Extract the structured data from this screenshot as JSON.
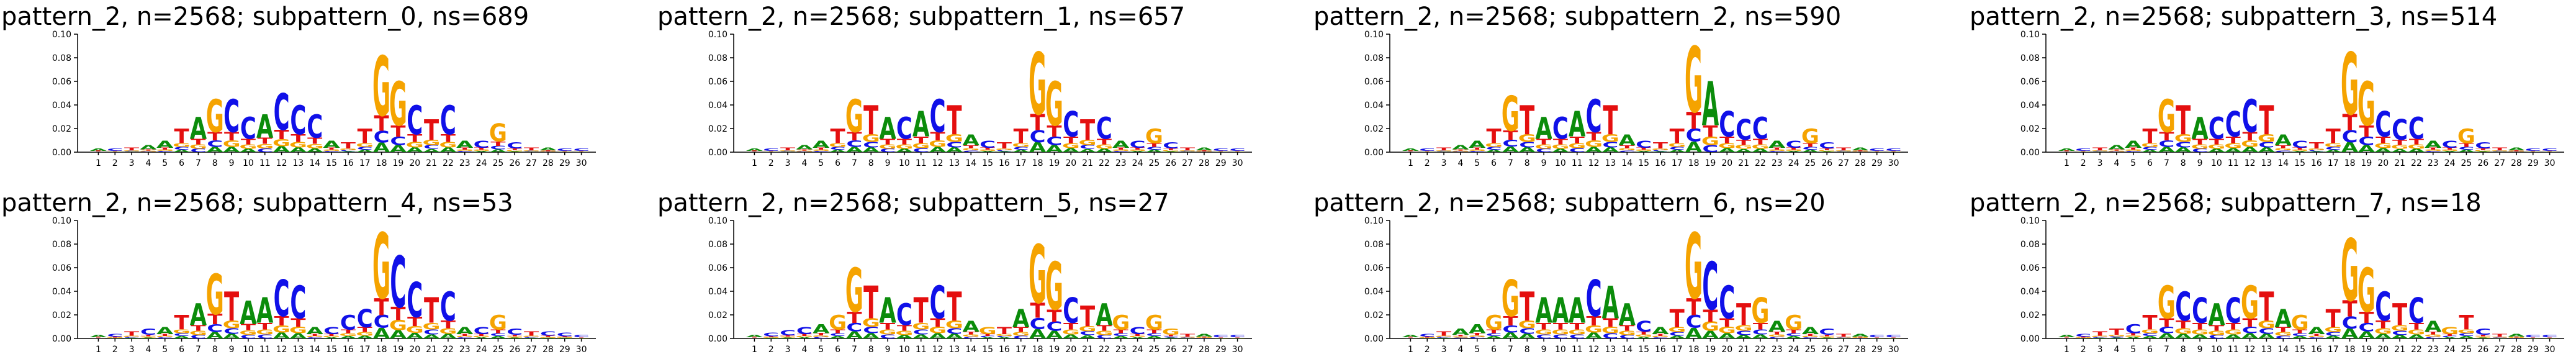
{
  "figure": {
    "chart_data": [
      {
        "type": "sequence-logo",
        "title": "pattern_2, n=2568; subpattern_0, ns=689",
        "ylim": [
          0,
          0.1
        ],
        "yticks": [
          "0.00",
          "0.02",
          "0.04",
          "0.06",
          "0.08",
          "0.10"
        ],
        "positions": [
          "1",
          "2",
          "3",
          "4",
          "5",
          "6",
          "7",
          "8",
          "9",
          "10",
          "11",
          "12",
          "13",
          "14",
          "15",
          "16",
          "17",
          "18",
          "19",
          "20",
          "21",
          "22",
          "23",
          "24",
          "25",
          "26",
          "27",
          "28",
          "29",
          "30"
        ],
        "heights": [
          0.003,
          0.003,
          0.004,
          0.006,
          0.01,
          0.02,
          0.03,
          0.045,
          0.045,
          0.03,
          0.032,
          0.05,
          0.04,
          0.032,
          0.01,
          0.008,
          0.02,
          0.082,
          0.06,
          0.04,
          0.028,
          0.04,
          0.01,
          0.01,
          0.024,
          0.008,
          0.004,
          0.004,
          0.003,
          0.003
        ],
        "top_letters": [
          "A",
          "C",
          "T",
          "A",
          "A",
          "T",
          "A",
          "G",
          "C",
          "C",
          "A",
          "C",
          "C",
          "C",
          "A",
          "T",
          "T",
          "G",
          "G",
          "C",
          "T",
          "C",
          "A",
          "C",
          "G",
          "C",
          "T",
          "A",
          "C",
          "C"
        ]
      },
      {
        "type": "sequence-logo",
        "title": "pattern_2, n=2568; subpattern_1, ns=657",
        "ylim": [
          0,
          0.1
        ],
        "yticks": [
          "0.00",
          "0.02",
          "0.04",
          "0.06",
          "0.08",
          "0.10"
        ],
        "positions": [
          "1",
          "2",
          "3",
          "4",
          "5",
          "6",
          "7",
          "8",
          "9",
          "10",
          "11",
          "12",
          "13",
          "14",
          "15",
          "16",
          "17",
          "18",
          "19",
          "20",
          "21",
          "22",
          "23",
          "24",
          "25",
          "26",
          "27",
          "28",
          "29",
          "30"
        ],
        "heights": [
          0.003,
          0.003,
          0.004,
          0.006,
          0.01,
          0.02,
          0.045,
          0.04,
          0.03,
          0.03,
          0.035,
          0.045,
          0.04,
          0.015,
          0.01,
          0.008,
          0.02,
          0.085,
          0.06,
          0.035,
          0.028,
          0.03,
          0.01,
          0.01,
          0.02,
          0.008,
          0.004,
          0.004,
          0.003,
          0.003
        ],
        "top_letters": [
          "A",
          "C",
          "T",
          "A",
          "A",
          "T",
          "G",
          "T",
          "A",
          "C",
          "A",
          "C",
          "T",
          "A",
          "C",
          "T",
          "T",
          "G",
          "G",
          "C",
          "T",
          "C",
          "A",
          "C",
          "G",
          "C",
          "T",
          "A",
          "C",
          "C"
        ]
      },
      {
        "type": "sequence-logo",
        "title": "pattern_2, n=2568; subpattern_2, ns=590",
        "ylim": [
          0,
          0.1
        ],
        "yticks": [
          "0.00",
          "0.02",
          "0.04",
          "0.06",
          "0.08",
          "0.10"
        ],
        "positions": [
          "1",
          "2",
          "3",
          "4",
          "5",
          "6",
          "7",
          "8",
          "9",
          "10",
          "11",
          "12",
          "13",
          "14",
          "15",
          "16",
          "17",
          "18",
          "19",
          "20",
          "21",
          "22",
          "23",
          "24",
          "25",
          "26",
          "27",
          "28",
          "29",
          "30"
        ],
        "heights": [
          0.003,
          0.003,
          0.004,
          0.006,
          0.01,
          0.02,
          0.048,
          0.04,
          0.03,
          0.03,
          0.035,
          0.045,
          0.04,
          0.015,
          0.01,
          0.008,
          0.02,
          0.09,
          0.06,
          0.035,
          0.028,
          0.03,
          0.01,
          0.01,
          0.02,
          0.008,
          0.004,
          0.004,
          0.003,
          0.003
        ],
        "top_letters": [
          "A",
          "C",
          "T",
          "A",
          "A",
          "T",
          "G",
          "T",
          "A",
          "C",
          "A",
          "C",
          "T",
          "A",
          "C",
          "T",
          "T",
          "G",
          "A",
          "C",
          "C",
          "C",
          "A",
          "C",
          "G",
          "C",
          "T",
          "A",
          "C",
          "C"
        ]
      },
      {
        "type": "sequence-logo",
        "title": "pattern_2, n=2568; subpattern_3, ns=514",
        "ylim": [
          0,
          0.1
        ],
        "yticks": [
          "0.00",
          "0.02",
          "0.04",
          "0.06",
          "0.08",
          "0.10"
        ],
        "positions": [
          "1",
          "2",
          "3",
          "4",
          "5",
          "6",
          "7",
          "8",
          "9",
          "10",
          "11",
          "12",
          "13",
          "14",
          "15",
          "16",
          "17",
          "18",
          "19",
          "20",
          "21",
          "22",
          "23",
          "24",
          "25",
          "26",
          "27",
          "28",
          "29",
          "30"
        ],
        "heights": [
          0.003,
          0.003,
          0.004,
          0.006,
          0.01,
          0.02,
          0.045,
          0.04,
          0.03,
          0.03,
          0.035,
          0.045,
          0.04,
          0.015,
          0.01,
          0.008,
          0.02,
          0.085,
          0.06,
          0.035,
          0.028,
          0.03,
          0.01,
          0.01,
          0.02,
          0.008,
          0.004,
          0.004,
          0.003,
          0.003
        ],
        "top_letters": [
          "A",
          "C",
          "T",
          "A",
          "A",
          "T",
          "G",
          "T",
          "A",
          "C",
          "C",
          "C",
          "T",
          "A",
          "C",
          "T",
          "T",
          "G",
          "G",
          "C",
          "C",
          "C",
          "A",
          "C",
          "G",
          "C",
          "T",
          "A",
          "C",
          "C"
        ]
      },
      {
        "type": "sequence-logo",
        "title": "pattern_2, n=2568; subpattern_4, ns=53",
        "ylim": [
          0,
          0.1
        ],
        "yticks": [
          "0.00",
          "0.02",
          "0.04",
          "0.06",
          "0.08",
          "0.10"
        ],
        "positions": [
          "1",
          "2",
          "3",
          "4",
          "5",
          "6",
          "7",
          "8",
          "9",
          "10",
          "11",
          "12",
          "13",
          "14",
          "15",
          "16",
          "17",
          "18",
          "19",
          "20",
          "21",
          "22",
          "23",
          "24",
          "25",
          "26",
          "27",
          "28",
          "29",
          "30"
        ],
        "heights": [
          0.003,
          0.004,
          0.006,
          0.008,
          0.01,
          0.02,
          0.03,
          0.055,
          0.04,
          0.032,
          0.035,
          0.05,
          0.045,
          0.01,
          0.01,
          0.02,
          0.025,
          0.09,
          0.07,
          0.048,
          0.035,
          0.04,
          0.01,
          0.01,
          0.02,
          0.008,
          0.006,
          0.006,
          0.005,
          0.003
        ],
        "top_letters": [
          "A",
          "C",
          "T",
          "C",
          "A",
          "T",
          "A",
          "G",
          "T",
          "A",
          "A",
          "C",
          "C",
          "A",
          "C",
          "C",
          "C",
          "G",
          "C",
          "C",
          "T",
          "C",
          "A",
          "C",
          "G",
          "C",
          "T",
          "C",
          "C",
          "C"
        ]
      },
      {
        "type": "sequence-logo",
        "title": "pattern_2, n=2568; subpattern_5, ns=27",
        "ylim": [
          0,
          0.1
        ],
        "yticks": [
          "0.00",
          "0.02",
          "0.04",
          "0.06",
          "0.08",
          "0.10"
        ],
        "positions": [
          "1",
          "2",
          "3",
          "4",
          "5",
          "6",
          "7",
          "8",
          "9",
          "10",
          "11",
          "12",
          "13",
          "14",
          "15",
          "16",
          "17",
          "18",
          "19",
          "20",
          "21",
          "22",
          "23",
          "24",
          "25",
          "26",
          "27",
          "28",
          "29",
          "30"
        ],
        "heights": [
          0.003,
          0.005,
          0.007,
          0.01,
          0.012,
          0.02,
          0.06,
          0.045,
          0.035,
          0.03,
          0.035,
          0.045,
          0.04,
          0.015,
          0.01,
          0.01,
          0.025,
          0.08,
          0.065,
          0.035,
          0.028,
          0.03,
          0.02,
          0.01,
          0.02,
          0.008,
          0.004,
          0.004,
          0.003,
          0.003
        ],
        "top_letters": [
          "A",
          "C",
          "C",
          "C",
          "A",
          "G",
          "G",
          "T",
          "A",
          "C",
          "T",
          "C",
          "T",
          "A",
          "G",
          "T",
          "A",
          "G",
          "G",
          "C",
          "T",
          "A",
          "G",
          "C",
          "G",
          "G",
          "T",
          "A",
          "C",
          "C"
        ]
      },
      {
        "type": "sequence-logo",
        "title": "pattern_2, n=2568; subpattern_6, ns=20",
        "ylim": [
          0,
          0.1
        ],
        "yticks": [
          "0.00",
          "0.02",
          "0.04",
          "0.06",
          "0.08",
          "0.10"
        ],
        "positions": [
          "1",
          "2",
          "3",
          "4",
          "5",
          "6",
          "7",
          "8",
          "9",
          "10",
          "11",
          "12",
          "13",
          "14",
          "15",
          "16",
          "17",
          "18",
          "19",
          "20",
          "21",
          "22",
          "23",
          "24",
          "25",
          "26",
          "27",
          "28",
          "29",
          "30"
        ],
        "heights": [
          0.003,
          0.004,
          0.006,
          0.008,
          0.012,
          0.02,
          0.05,
          0.04,
          0.035,
          0.035,
          0.035,
          0.05,
          0.045,
          0.03,
          0.015,
          0.01,
          0.025,
          0.09,
          0.065,
          0.045,
          0.03,
          0.035,
          0.015,
          0.02,
          0.01,
          0.008,
          0.004,
          0.004,
          0.003,
          0.003
        ],
        "top_letters": [
          "A",
          "C",
          "T",
          "A",
          "A",
          "G",
          "G",
          "T",
          "A",
          "A",
          "A",
          "C",
          "A",
          "A",
          "C",
          "A",
          "T",
          "G",
          "C",
          "C",
          "T",
          "G",
          "A",
          "G",
          "A",
          "C",
          "T",
          "A",
          "C",
          "C"
        ]
      },
      {
        "type": "sequence-logo",
        "title": "pattern_2, n=2568; subpattern_7, ns=18",
        "ylim": [
          0,
          0.1
        ],
        "yticks": [
          "0.00",
          "0.02",
          "0.04",
          "0.06",
          "0.08",
          "0.10"
        ],
        "positions": [
          "1",
          "2",
          "3",
          "4",
          "5",
          "6",
          "7",
          "8",
          "9",
          "10",
          "11",
          "12",
          "13",
          "14",
          "15",
          "16",
          "17",
          "18",
          "19",
          "20",
          "21",
          "22",
          "23",
          "24",
          "25",
          "26",
          "27",
          "28",
          "29",
          "30"
        ],
        "heights": [
          0.003,
          0.004,
          0.006,
          0.008,
          0.012,
          0.02,
          0.045,
          0.04,
          0.035,
          0.03,
          0.035,
          0.045,
          0.04,
          0.025,
          0.02,
          0.01,
          0.025,
          0.085,
          0.06,
          0.04,
          0.03,
          0.035,
          0.015,
          0.01,
          0.02,
          0.008,
          0.004,
          0.004,
          0.003,
          0.003
        ],
        "top_letters": [
          "A",
          "C",
          "T",
          "T",
          "C",
          "T",
          "G",
          "C",
          "C",
          "A",
          "C",
          "G",
          "T",
          "A",
          "G",
          "A",
          "T",
          "G",
          "G",
          "C",
          "T",
          "C",
          "A",
          "G",
          "T",
          "C",
          "T",
          "A",
          "C",
          "C"
        ]
      }
    ]
  },
  "nucleotide_colors": {
    "A": "#0b8c0b",
    "C": "#1010e8",
    "G": "#f5a300",
    "T": "#e40f0f"
  }
}
